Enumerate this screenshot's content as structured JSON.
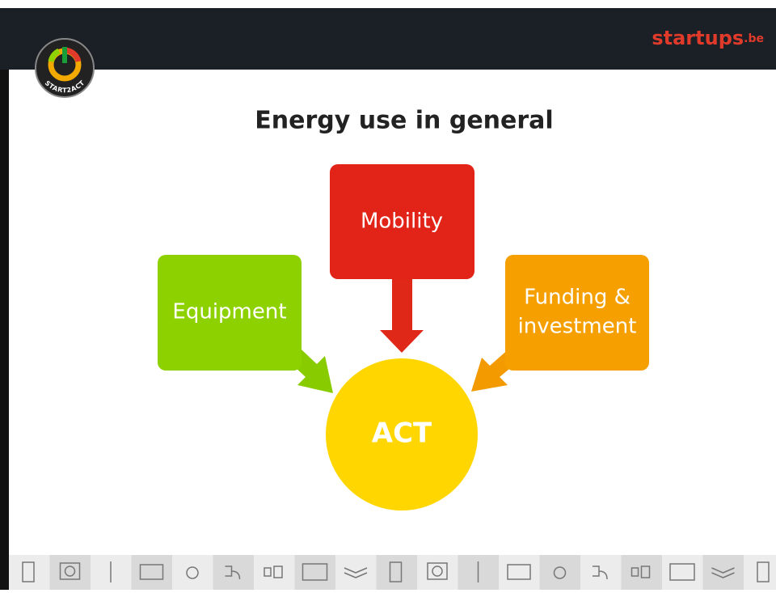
{
  "header": {
    "brand": "startups",
    "brand_suffix": ".be",
    "logo_text": "START2ACT"
  },
  "title": "Energy use in general",
  "nodes": [
    {
      "label": [
        "Mobility"
      ]
    },
    {
      "label": [
        "Equipment"
      ]
    },
    {
      "label": [
        "Funding &",
        "investment"
      ]
    },
    {
      "label": [
        "ACT"
      ]
    }
  ]
}
